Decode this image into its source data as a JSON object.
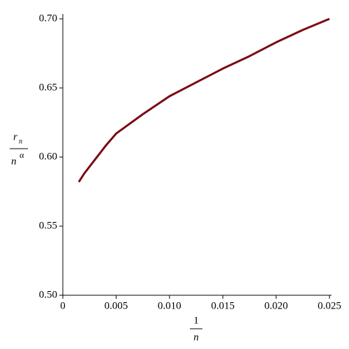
{
  "chart_data": {
    "type": "line",
    "xlabel": {
      "numerator": "1",
      "denominator": "n"
    },
    "ylabel": {
      "numerator": "r",
      "numerator_sub": "n",
      "denominator": "n",
      "denominator_sup": "α"
    },
    "x": [
      0.0015,
      0.002,
      0.003,
      0.004,
      0.005,
      0.0075,
      0.01,
      0.0125,
      0.015,
      0.0175,
      0.02,
      0.0225,
      0.025
    ],
    "series": [
      {
        "color": "#7b0a12",
        "values": [
          0.582,
          0.588,
          0.598,
          0.608,
          0.617,
          0.631,
          0.644,
          0.654,
          0.664,
          0.673,
          0.683,
          0.692,
          0.7
        ]
      }
    ],
    "xlim": [
      0,
      0.025
    ],
    "xticks": [
      0,
      0.005,
      {
        "value": 0.01,
        "label": "0.010"
      },
      0.015,
      {
        "value": 0.02,
        "label": "0.020"
      },
      0.025
    ],
    "ylim": [
      0.5,
      0.7
    ],
    "yticks": [
      {
        "value": 0.5,
        "label": "0.50"
      },
      0.55,
      {
        "value": 0.6,
        "label": "0.60"
      },
      0.65,
      {
        "value": 0.7,
        "label": "0.70"
      }
    ]
  }
}
